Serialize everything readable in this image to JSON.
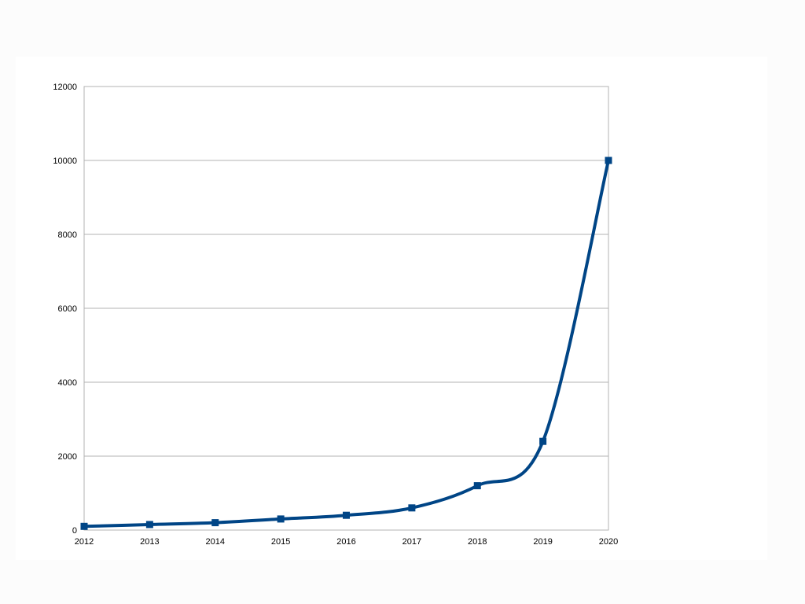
{
  "chart_data": {
    "type": "line",
    "title": "",
    "xlabel": "",
    "ylabel": "",
    "categories": [
      "2012",
      "2013",
      "2014",
      "2015",
      "2016",
      "2017",
      "2018",
      "2019",
      "2020"
    ],
    "series": [
      {
        "values": [
          100,
          150,
          200,
          300,
          400,
          600,
          1200,
          2400,
          10000
        ],
        "color": "#004586",
        "marker": "square",
        "smooth": true
      }
    ],
    "ylim": [
      0,
      12000
    ],
    "yticks": [
      0,
      2000,
      4000,
      6000,
      8000,
      10000,
      12000
    ],
    "grid": "horizontal",
    "legend": "none"
  }
}
